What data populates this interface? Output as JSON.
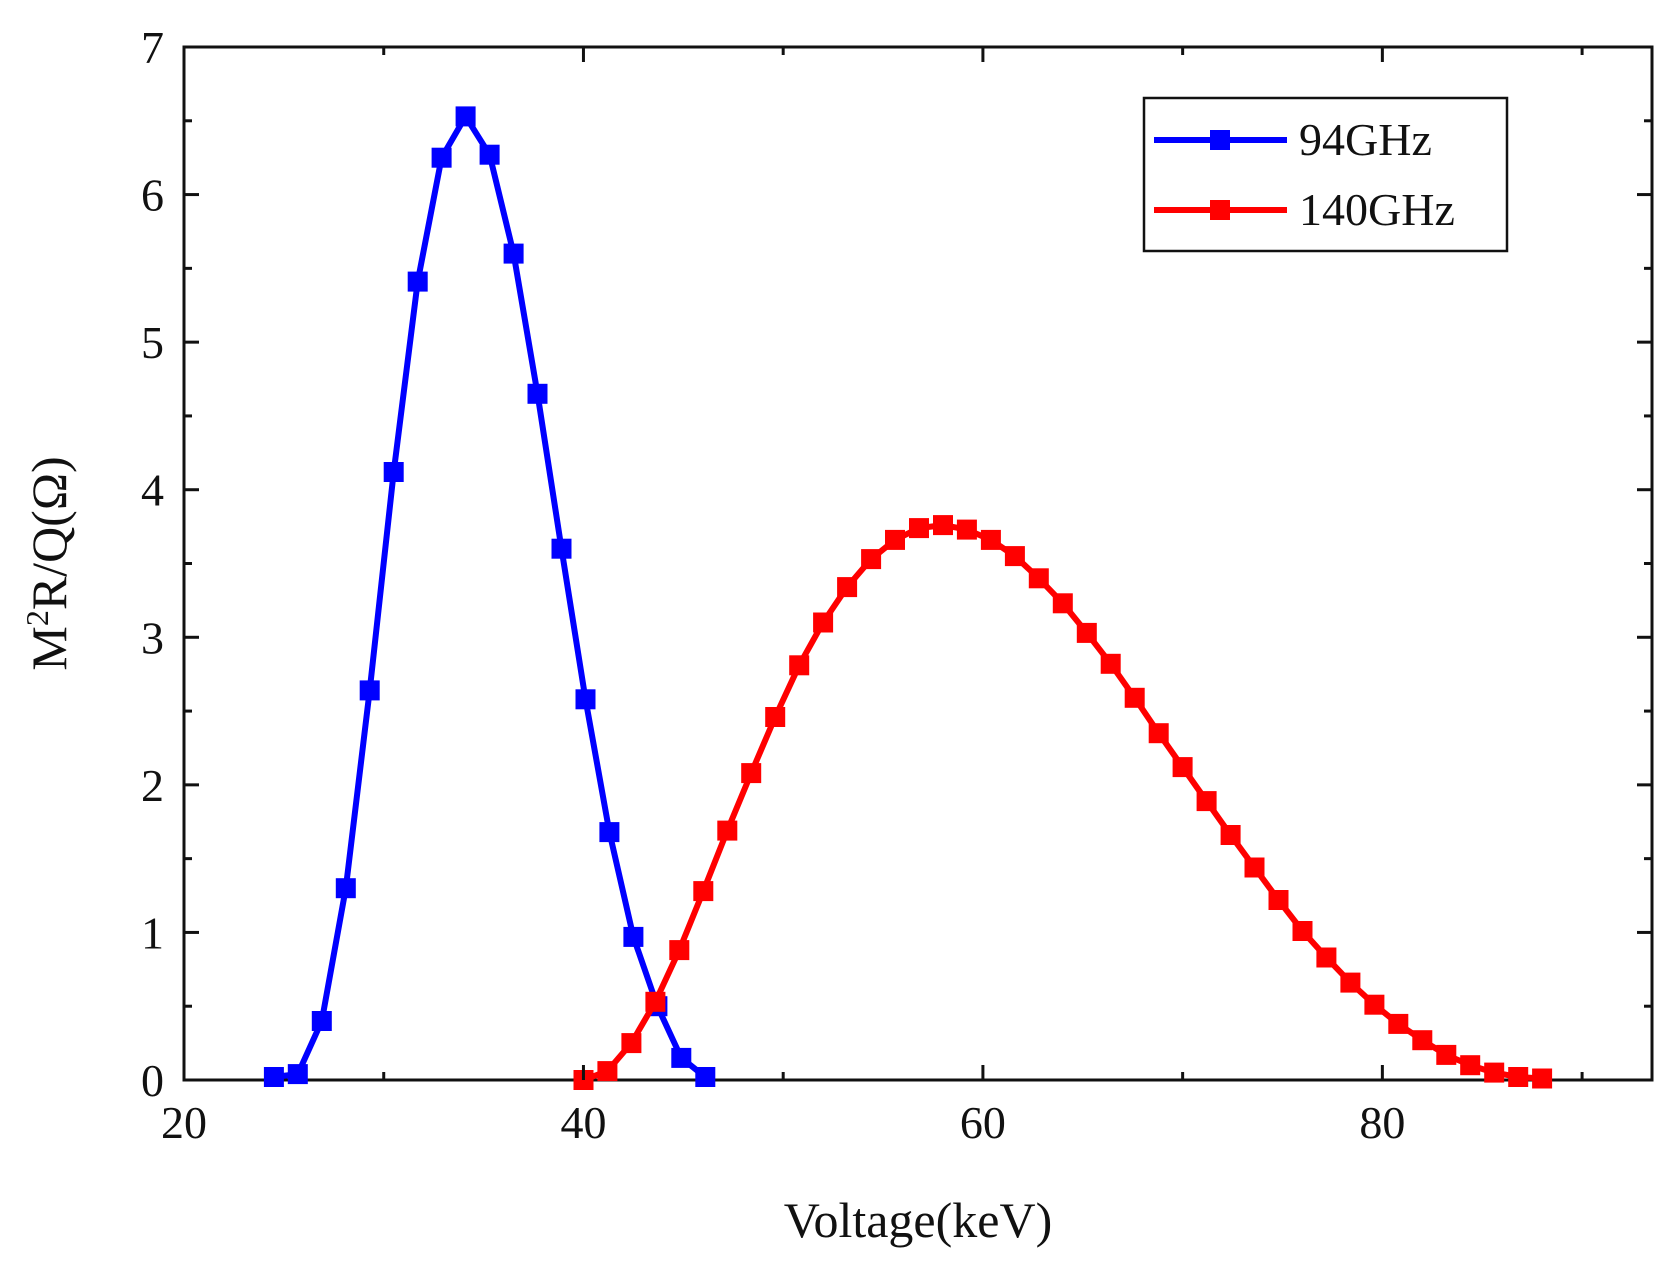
{
  "chart_data": {
    "type": "line",
    "title": "",
    "xlabel": "Voltage(keV)",
    "ylabel": {
      "base": "M",
      "superscript": "2",
      "rest": "R/Q(Ω)"
    },
    "xlim": [
      20,
      93.5
    ],
    "ylim": [
      0,
      7
    ],
    "xticks": [
      20,
      40,
      60,
      80
    ],
    "yticks": [
      0,
      1,
      2,
      3,
      4,
      5,
      6,
      7
    ],
    "grid": false,
    "legend_position": "top-right",
    "series": [
      {
        "name": "94GHz",
        "color": "#0000ff",
        "marker": "square",
        "x": [
          24.5,
          25.7,
          26.9,
          28.1,
          29.3,
          30.5,
          31.7,
          32.9,
          34.1,
          35.3,
          36.5,
          37.7,
          38.9,
          40.1,
          41.3,
          42.5,
          43.7,
          44.9,
          46.1
        ],
        "y": [
          0.02,
          0.04,
          0.4,
          1.3,
          2.64,
          4.12,
          5.41,
          6.25,
          6.53,
          6.27,
          5.6,
          4.65,
          3.6,
          2.58,
          1.68,
          0.97,
          0.5,
          0.15,
          0.02
        ]
      },
      {
        "name": "140GHz",
        "color": "#ff0000",
        "marker": "square",
        "x": [
          40.0,
          41.2,
          42.4,
          43.6,
          44.8,
          46.0,
          47.2,
          48.4,
          49.6,
          50.8,
          52.0,
          53.2,
          54.4,
          55.6,
          56.8,
          58.0,
          59.2,
          60.4,
          61.6,
          62.8,
          64.0,
          65.2,
          66.4,
          67.6,
          68.8,
          70.0,
          71.2,
          72.4,
          73.6,
          74.8,
          76.0,
          77.2,
          78.4,
          79.6,
          80.8,
          82.0,
          83.2,
          84.4,
          85.6,
          86.8,
          88.0
        ],
        "y": [
          0.0,
          0.06,
          0.25,
          0.53,
          0.88,
          1.28,
          1.69,
          2.08,
          2.46,
          2.81,
          3.1,
          3.34,
          3.53,
          3.66,
          3.74,
          3.76,
          3.73,
          3.66,
          3.55,
          3.4,
          3.23,
          3.03,
          2.82,
          2.59,
          2.35,
          2.12,
          1.89,
          1.66,
          1.44,
          1.22,
          1.01,
          0.83,
          0.66,
          0.51,
          0.38,
          0.27,
          0.17,
          0.1,
          0.05,
          0.02,
          0.01
        ]
      }
    ]
  }
}
